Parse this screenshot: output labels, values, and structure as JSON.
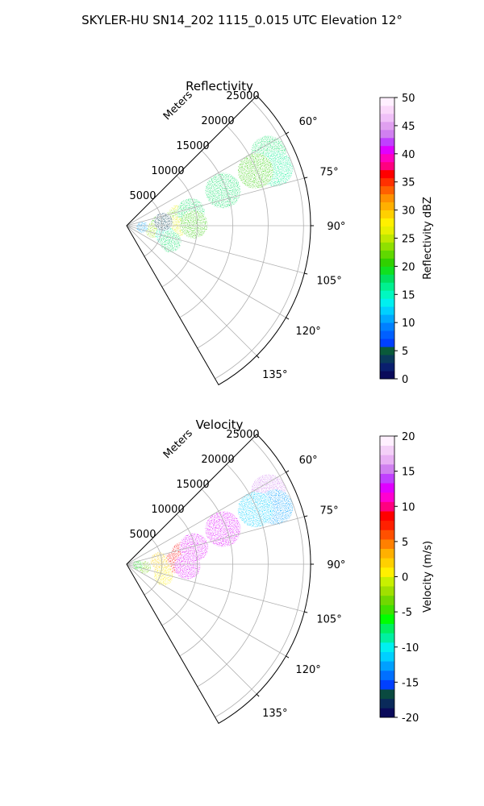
{
  "figure": {
    "suptitle": "SKYLER-HU  SN14_202  1115_0.015 UTC Elevation 12°"
  },
  "chart_data": [
    {
      "type": "heatmap",
      "title": "Reflectivity",
      "projection": "polar sector (PPI)",
      "radial_label": "Meters",
      "radial_ticks": [
        5000,
        10000,
        15000,
        20000,
        25000
      ],
      "r_max_m": 26000,
      "azimuth_range_deg": [
        45,
        150
      ],
      "azimuth_tick_labels": [
        "60°",
        "75°",
        "90°",
        "105°",
        "120°",
        "135°"
      ],
      "azimuth_ticks_deg": [
        60,
        75,
        90,
        105,
        120,
        135
      ],
      "grid": true,
      "colorbar": {
        "label": "Reflectivity dBZ",
        "min": 0,
        "max": 50,
        "ticks": [
          0,
          5,
          10,
          15,
          20,
          25,
          30,
          35,
          40,
          45,
          50
        ],
        "colors": [
          "#0a0a5a",
          "#0a1f6e",
          "#0a3a5a",
          "#0a5a3a",
          "#0040ff",
          "#0060ff",
          "#0080ff",
          "#00a8ff",
          "#00d0ff",
          "#00f0f0",
          "#00f8c0",
          "#00f090",
          "#00e060",
          "#10e020",
          "#30d000",
          "#60d800",
          "#90e000",
          "#c0e800",
          "#e8f000",
          "#fff000",
          "#ffd000",
          "#ffb000",
          "#ff9000",
          "#ff6000",
          "#ff3000",
          "#ff0000",
          "#ff0080",
          "#ff00c0",
          "#e000ff",
          "#c040ff",
          "#d080f0",
          "#e0a0f0",
          "#f0c0f8",
          "#fad8fa",
          "#fff0ff"
        ]
      },
      "echo_cells": [
        {
          "az": 80,
          "r": 7600,
          "value": 27
        },
        {
          "az": 84,
          "r": 6800,
          "value": 22
        },
        {
          "az": 78,
          "r": 9300,
          "value": 18
        },
        {
          "az": 92,
          "r": 6800,
          "value": 26
        },
        {
          "az": 89,
          "r": 9500,
          "value": 20
        },
        {
          "az": 87,
          "r": 4600,
          "value": 20
        },
        {
          "az": 100,
          "r": 3800,
          "value": 24
        },
        {
          "az": 104,
          "r": 5600,
          "value": 15
        },
        {
          "az": 110,
          "r": 6600,
          "value": 18
        },
        {
          "az": 95,
          "r": 2200,
          "value": 10
        },
        {
          "az": 84,
          "r": 5200,
          "value": 4
        },
        {
          "az": 63,
          "r": 22500,
          "value": 18
        },
        {
          "az": 69,
          "r": 22500,
          "value": 16
        },
        {
          "az": 70,
          "r": 14500,
          "value": 18
        },
        {
          "az": 67,
          "r": 19800,
          "value": 20
        }
      ]
    },
    {
      "type": "heatmap",
      "title": "Velocity",
      "projection": "polar sector (PPI)",
      "radial_label": "Meters",
      "radial_ticks": [
        5000,
        10000,
        15000,
        20000,
        25000
      ],
      "r_max_m": 26000,
      "azimuth_range_deg": [
        45,
        150
      ],
      "azimuth_tick_labels": [
        "60°",
        "75°",
        "90°",
        "105°",
        "120°",
        "135°"
      ],
      "azimuth_ticks_deg": [
        60,
        75,
        90,
        105,
        120,
        135
      ],
      "grid": true,
      "colorbar": {
        "label": "Velocity (m/s)",
        "min": -20,
        "max": 20,
        "ticks": [
          -20,
          -15,
          -10,
          -5,
          0,
          5,
          10,
          15,
          20
        ],
        "colors": [
          "#0a0a5a",
          "#0a2a5a",
          "#0a4a40",
          "#0040ff",
          "#0070ff",
          "#00a0ff",
          "#00d0ff",
          "#00f0f0",
          "#00f0a0",
          "#00f060",
          "#00ff00",
          "#40e000",
          "#70d800",
          "#a0e000",
          "#c8f000",
          "#fff000",
          "#ffd000",
          "#ffb000",
          "#ff8000",
          "#ff5000",
          "#ff2000",
          "#ff0000",
          "#ff0080",
          "#ff00d0",
          "#e000ff",
          "#c040ff",
          "#d080f0",
          "#e8b0f4",
          "#f4d0f8",
          "#fff0ff"
        ]
      },
      "echo_cells": [
        {
          "az": 80,
          "r": 8200,
          "value": 9
        },
        {
          "az": 76,
          "r": 9800,
          "value": 13
        },
        {
          "az": 88,
          "r": 6800,
          "value": 8
        },
        {
          "az": 92,
          "r": 8600,
          "value": 13
        },
        {
          "az": 84,
          "r": 4600,
          "value": 2
        },
        {
          "az": 100,
          "r": 5200,
          "value": 2
        },
        {
          "az": 108,
          "r": 5500,
          "value": 1
        },
        {
          "az": 100,
          "r": 2600,
          "value": -4
        },
        {
          "az": 95,
          "r": 1600,
          "value": -6
        },
        {
          "az": 63,
          "r": 22500,
          "value": 15
        },
        {
          "az": 69,
          "r": 22500,
          "value": -13
        },
        {
          "az": 70,
          "r": 14500,
          "value": 12
        },
        {
          "az": 67,
          "r": 19800,
          "value": -12
        }
      ]
    }
  ]
}
